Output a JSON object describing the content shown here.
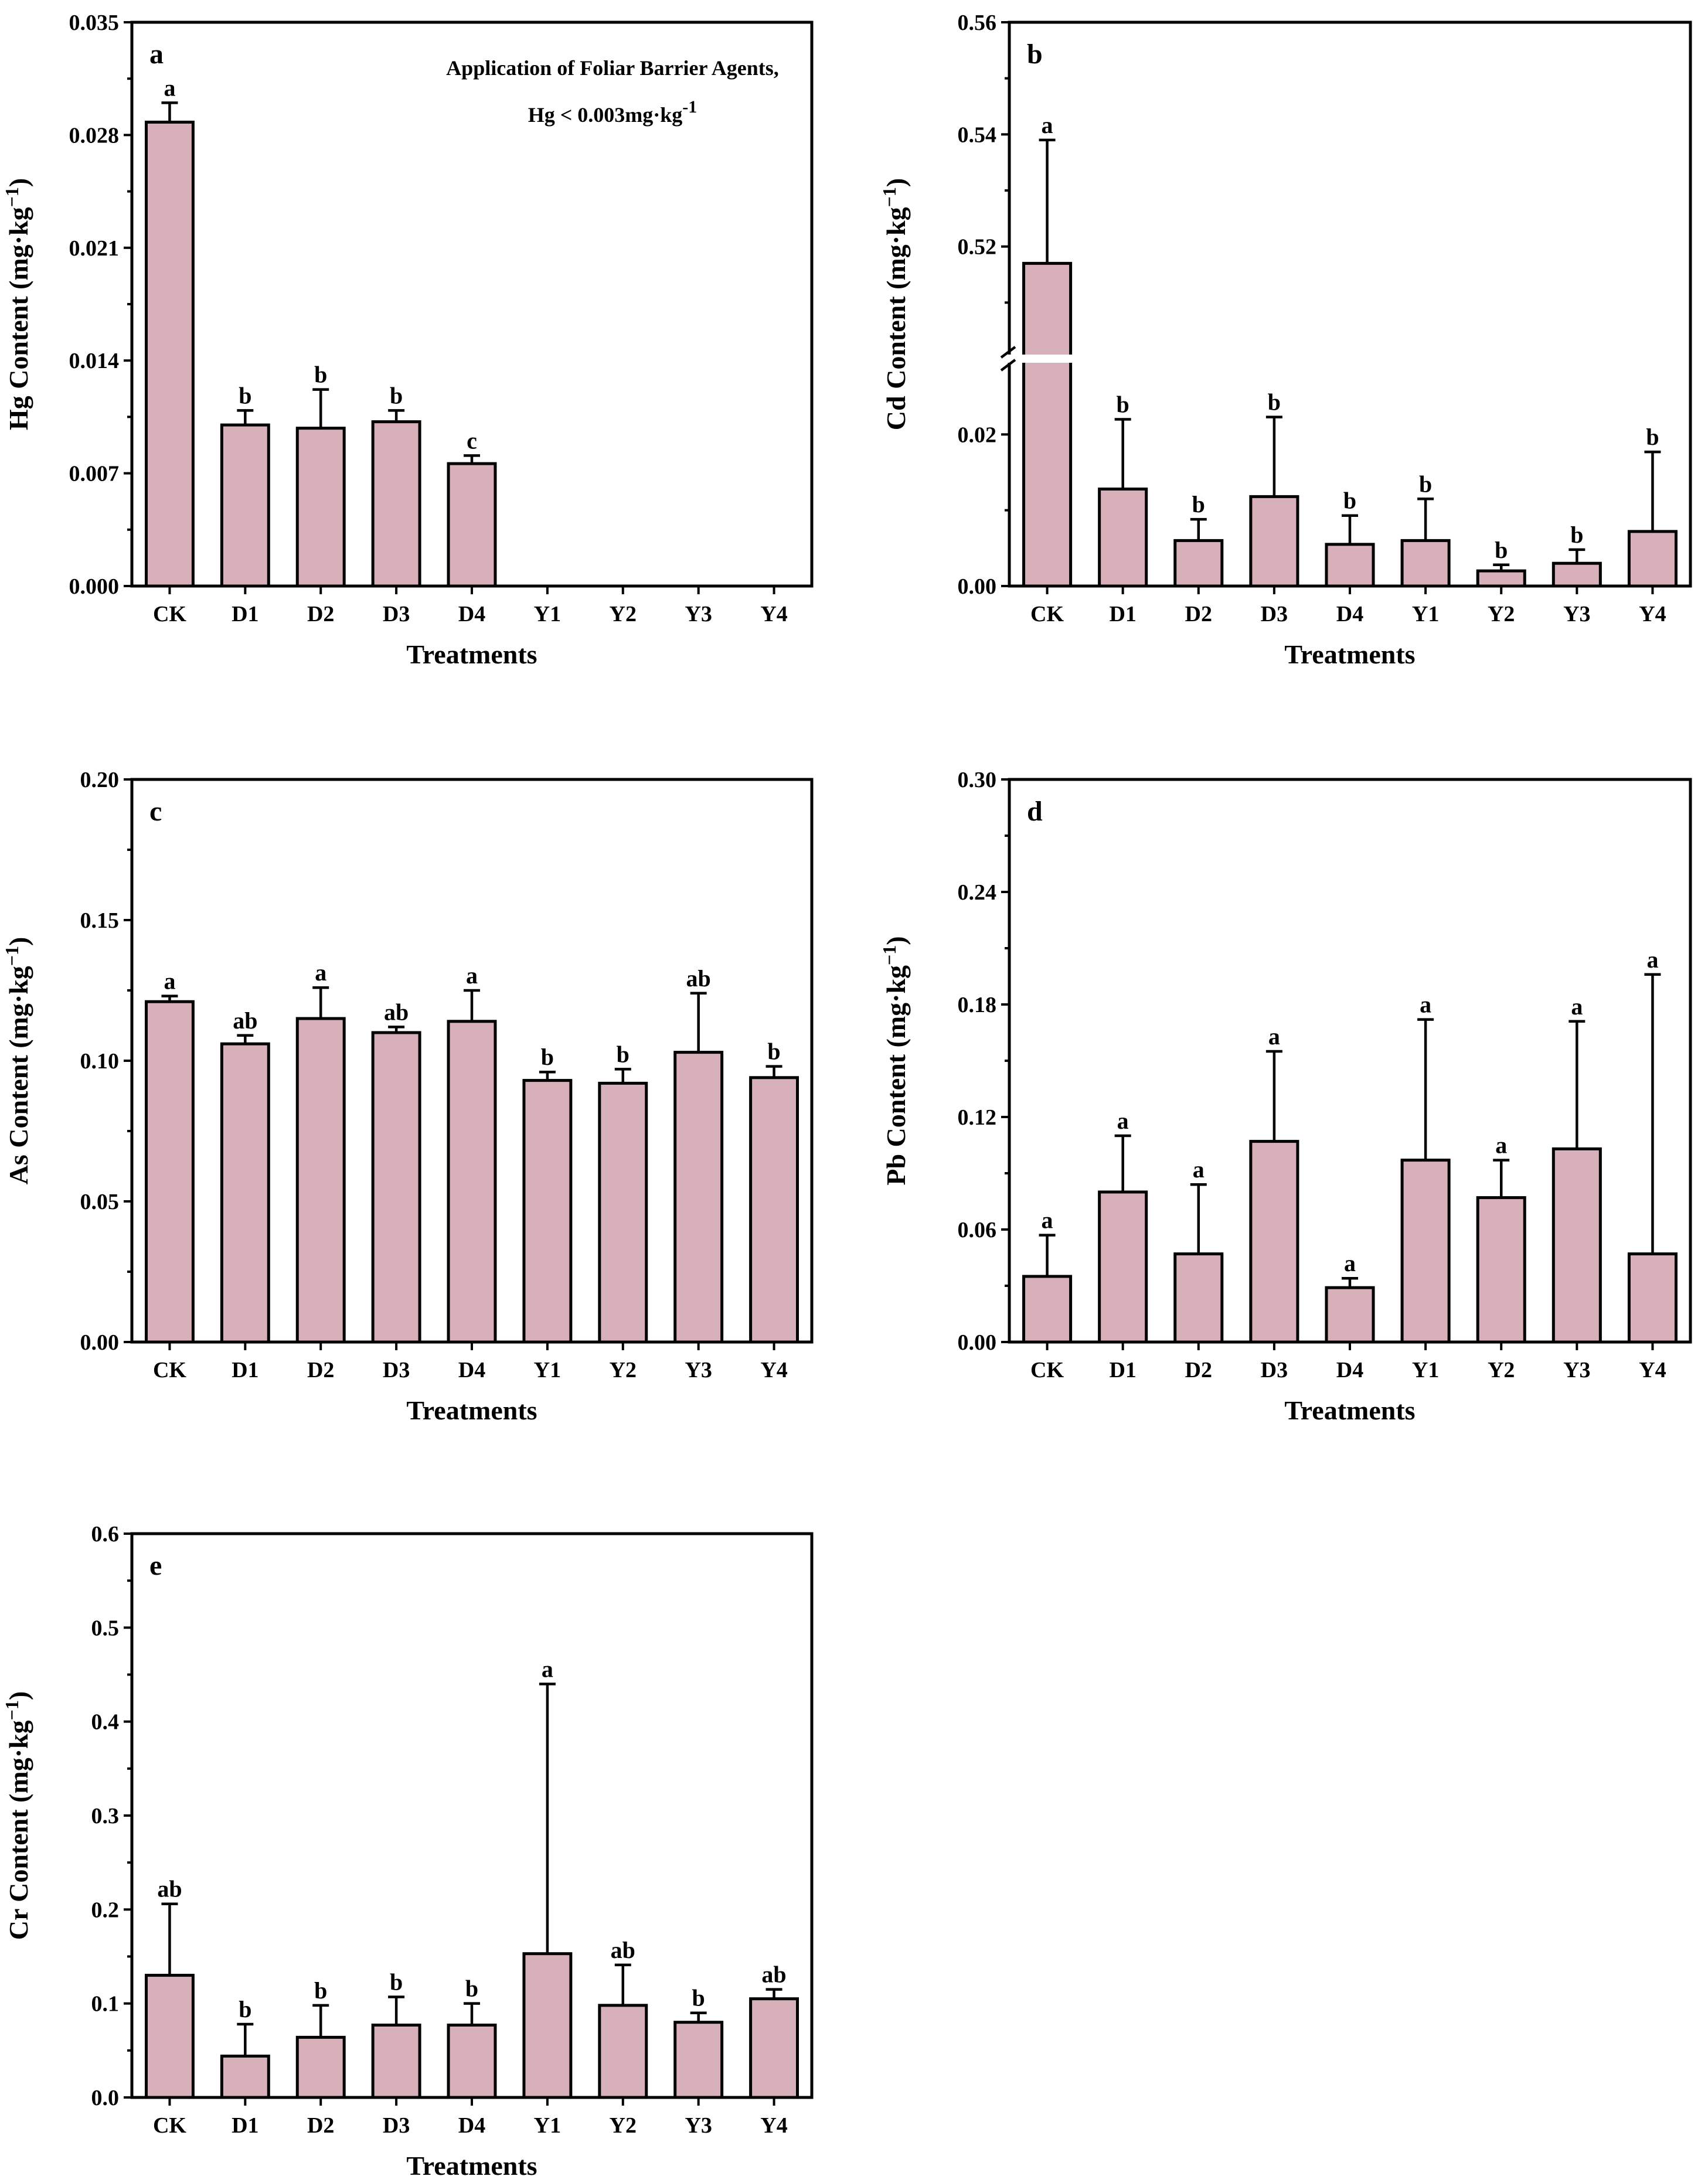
{
  "colors": {
    "bar_fill": "#d8b0ba",
    "axis": "#000000",
    "background": "#ffffff"
  },
  "chart_data": [
    {
      "id": "a",
      "type": "bar",
      "panel_label": "a",
      "title": "",
      "xlabel": "Treatments",
      "ylabel": "Hg Content (mg·kg⁻¹)",
      "categories": [
        "CK",
        "D1",
        "D2",
        "D3",
        "D4",
        "Y1",
        "Y2",
        "Y3",
        "Y4"
      ],
      "values": [
        0.0288,
        0.01,
        0.0098,
        0.0102,
        0.0076,
        null,
        null,
        null,
        null
      ],
      "errors": [
        0.0012,
        0.0009,
        0.0024,
        0.0007,
        0.0005,
        null,
        null,
        null,
        null
      ],
      "significance": [
        "a",
        "b",
        "b",
        "b",
        "c",
        "",
        "",
        "",
        ""
      ],
      "ylim": [
        0,
        0.035
      ],
      "yticks": [
        "0.000",
        "0.007",
        "0.014",
        "0.021",
        "0.028",
        "0.035"
      ],
      "annotation": [
        "Application of  Foliar Barrier Agents,",
        "Hg < 0.003mg·kg⁻¹"
      ]
    },
    {
      "id": "b",
      "type": "bar",
      "panel_label": "b",
      "title": "",
      "xlabel": "Treatments",
      "ylabel": "Cd Content (mg·kg⁻¹)",
      "categories": [
        "CK",
        "D1",
        "D2",
        "D3",
        "D4",
        "Y1",
        "Y2",
        "Y3",
        "Y4"
      ],
      "values": [
        0.517,
        0.0128,
        0.006,
        0.0118,
        0.0055,
        0.006,
        0.002,
        0.003,
        0.0072
      ],
      "errors": [
        0.022,
        0.0092,
        0.0028,
        0.0105,
        0.0038,
        0.0055,
        0.0008,
        0.0018,
        0.0105
      ],
      "significance": [
        "a",
        "b",
        "b",
        "b",
        "b",
        "b",
        "b",
        "b",
        "b"
      ],
      "axis_break": true,
      "ylim_lower": [
        0,
        0.03
      ],
      "ylim_upper": [
        0.5,
        0.56
      ],
      "yticks_lower": [
        "0.00",
        "0.02"
      ],
      "yticks_upper": [
        "0.52",
        "0.54",
        "0.56"
      ]
    },
    {
      "id": "c",
      "type": "bar",
      "panel_label": "c",
      "title": "",
      "xlabel": "Treatments",
      "ylabel": "As Content (mg·kg⁻¹)",
      "categories": [
        "CK",
        "D1",
        "D2",
        "D3",
        "D4",
        "Y1",
        "Y2",
        "Y3",
        "Y4"
      ],
      "values": [
        0.121,
        0.106,
        0.115,
        0.11,
        0.114,
        0.093,
        0.092,
        0.103,
        0.094
      ],
      "errors": [
        0.002,
        0.003,
        0.011,
        0.002,
        0.011,
        0.003,
        0.005,
        0.021,
        0.004
      ],
      "significance": [
        "a",
        "ab",
        "a",
        "ab",
        "a",
        "b",
        "b",
        "ab",
        "b"
      ],
      "ylim": [
        0,
        0.2
      ],
      "yticks": [
        "0.00",
        "0.05",
        "0.10",
        "0.15",
        "0.20"
      ]
    },
    {
      "id": "d",
      "type": "bar",
      "panel_label": "d",
      "title": "",
      "xlabel": "Treatments",
      "ylabel": "Pb Content (mg·kg⁻¹)",
      "categories": [
        "CK",
        "D1",
        "D2",
        "D3",
        "D4",
        "Y1",
        "Y2",
        "Y3",
        "Y4"
      ],
      "values": [
        0.035,
        0.08,
        0.047,
        0.107,
        0.029,
        0.097,
        0.077,
        0.103,
        0.047
      ],
      "errors": [
        0.022,
        0.03,
        0.037,
        0.048,
        0.005,
        0.075,
        0.02,
        0.068,
        0.149
      ],
      "significance": [
        "a",
        "a",
        "a",
        "a",
        "a",
        "a",
        "a",
        "a",
        "a"
      ],
      "ylim": [
        0,
        0.3
      ],
      "yticks": [
        "0.00",
        "0.06",
        "0.12",
        "0.18",
        "0.24",
        "0.30"
      ]
    },
    {
      "id": "e",
      "type": "bar",
      "panel_label": "e",
      "title": "",
      "xlabel": "Treatments",
      "ylabel": "Cr Content (mg·kg⁻¹)",
      "categories": [
        "CK",
        "D1",
        "D2",
        "D3",
        "D4",
        "Y1",
        "Y2",
        "Y3",
        "Y4"
      ],
      "values": [
        0.13,
        0.044,
        0.064,
        0.077,
        0.077,
        0.153,
        0.098,
        0.08,
        0.105
      ],
      "errors": [
        0.076,
        0.034,
        0.034,
        0.03,
        0.023,
        0.287,
        0.043,
        0.01,
        0.01
      ],
      "significance": [
        "ab",
        "b",
        "b",
        "b",
        "b",
        "a",
        "ab",
        "b",
        "ab"
      ],
      "ylim": [
        0,
        0.6
      ],
      "yticks": [
        "0.0",
        "0.1",
        "0.2",
        "0.3",
        "0.4",
        "0.5",
        "0.6"
      ]
    }
  ]
}
